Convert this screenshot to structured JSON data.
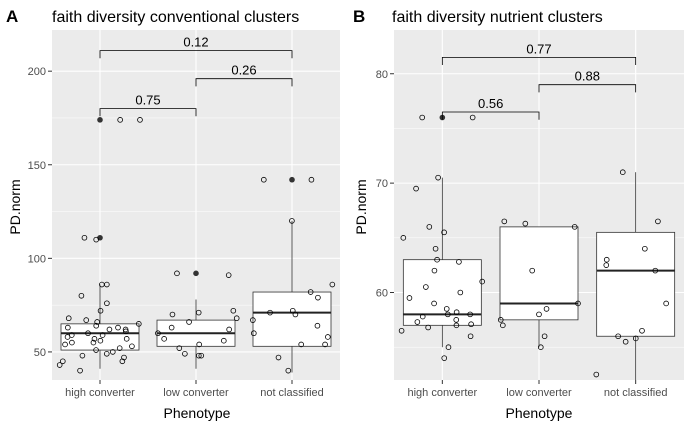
{
  "chart_data": [
    {
      "panel_tag": "A",
      "type": "box",
      "title": "faith diversity conventional clusters",
      "xlabel": "Phenotype",
      "ylabel": "PD.norm",
      "categories": [
        "high converter",
        "low converter",
        "not classified"
      ],
      "ylim": [
        35,
        222
      ],
      "yticks": [
        "50",
        "100",
        "150",
        "200"
      ],
      "grid": true,
      "boxes": [
        {
          "q1": 51,
          "median": 60,
          "q3": 65,
          "whisker_low": 41,
          "whisker_high": 86,
          "outliers": [
            111,
            174
          ]
        },
        {
          "q1": 53,
          "median": 60,
          "q3": 67,
          "whisker_low": 41,
          "whisker_high": 78,
          "outliers": [
            92
          ]
        },
        {
          "q1": 53,
          "median": 71,
          "q3": 82,
          "whisker_low": 39,
          "whisker_high": 120,
          "outliers": [
            142
          ]
        }
      ],
      "points": [
        [
          52,
          54,
          55,
          57,
          59,
          61,
          63,
          65,
          48,
          45,
          43,
          40,
          50,
          56,
          58,
          60,
          62,
          64,
          66,
          68,
          47,
          53,
          67,
          72,
          76,
          80,
          86,
          86,
          110,
          111,
          174,
          174,
          49,
          51,
          57,
          62,
          45,
          55,
          59,
          63
        ],
        [
          48,
          49,
          52,
          54,
          57,
          60,
          62,
          63,
          66,
          68,
          70,
          71,
          72,
          91,
          92,
          48,
          56
        ],
        [
          40,
          47,
          54,
          60,
          64,
          67,
          70,
          71,
          72,
          79,
          82,
          86,
          120,
          142,
          142,
          54,
          58
        ]
      ],
      "comparisons": [
        {
          "label": "0.75",
          "from": 0,
          "to": 1,
          "y": 180
        },
        {
          "label": "0.26",
          "from": 1,
          "to": 2,
          "y": 196
        },
        {
          "label": "0.12",
          "from": 0,
          "to": 2,
          "y": 211
        }
      ]
    },
    {
      "panel_tag": "B",
      "type": "box",
      "title": "faith diversity nutrient clusters",
      "xlabel": "Phenotype",
      "ylabel": "PD.norm",
      "categories": [
        "high converter",
        "low converter",
        "not classified"
      ],
      "ylim": [
        52,
        84
      ],
      "yticks": [
        "60",
        "70",
        "80"
      ],
      "grid": true,
      "boxes": [
        {
          "q1": 57,
          "median": 58,
          "q3": 63,
          "whisker_low": 55,
          "whisker_high": 70.5,
          "outliers": [
            76
          ]
        },
        {
          "q1": 57.5,
          "median": 59,
          "q3": 66,
          "whisker_low": 55,
          "whisker_high": 66,
          "outliers": []
        },
        {
          "q1": 56,
          "median": 62,
          "q3": 65.5,
          "whisker_low": 52,
          "whisker_high": 71,
          "outliers": []
        }
      ],
      "points": [
        [
          54,
          55,
          56,
          56.5,
          57,
          57.5,
          58,
          58.5,
          59,
          60,
          61,
          62,
          63,
          64,
          65,
          66,
          69.5,
          70.5,
          76,
          76,
          58,
          57.3,
          58.2,
          57.8,
          56.8,
          59.5,
          57.1,
          60.5,
          62.8,
          65.5
        ],
        [
          55,
          56,
          57,
          58,
          59,
          62,
          66,
          66.5,
          66.3,
          57.5,
          58.5
        ],
        [
          52.5,
          55.5,
          56,
          56.5,
          59,
          62,
          63,
          64,
          66.5,
          71,
          55.8,
          62.5
        ]
      ],
      "comparisons": [
        {
          "label": "0.56",
          "from": 0,
          "to": 1,
          "y": 76.5
        },
        {
          "label": "0.88",
          "from": 1,
          "to": 2,
          "y": 79
        },
        {
          "label": "0.77",
          "from": 0,
          "to": 2,
          "y": 81.5
        }
      ]
    }
  ]
}
